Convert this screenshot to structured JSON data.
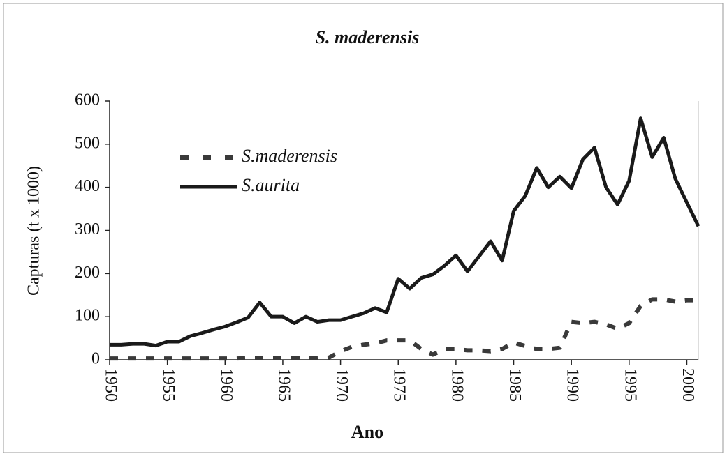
{
  "chart_data": {
    "type": "line",
    "title": "S. maderensis",
    "x_label": "Ano",
    "y_label": "Capturas (t x 1000)",
    "x": [
      1950,
      1951,
      1952,
      1953,
      1954,
      1955,
      1956,
      1957,
      1958,
      1959,
      1960,
      1961,
      1962,
      1963,
      1964,
      1965,
      1966,
      1967,
      1968,
      1969,
      1970,
      1971,
      1972,
      1973,
      1974,
      1975,
      1976,
      1977,
      1978,
      1979,
      1980,
      1981,
      1982,
      1983,
      1984,
      1985,
      1986,
      1987,
      1988,
      1989,
      1990,
      1991,
      1992,
      1993,
      1994,
      1995,
      1996,
      1997,
      1998,
      1999,
      2000,
      2001
    ],
    "series": [
      {
        "name": "S.maderensis",
        "color": "#3a3a3a",
        "dash": true,
        "values": [
          3,
          3,
          3,
          3,
          3,
          3,
          3,
          3,
          3,
          3,
          3,
          3,
          4,
          4,
          4,
          4,
          4,
          4,
          4,
          5,
          20,
          30,
          35,
          38,
          45,
          45,
          45,
          25,
          12,
          25,
          25,
          22,
          22,
          20,
          25,
          40,
          32,
          25,
          25,
          28,
          88,
          85,
          88,
          82,
          72,
          85,
          125,
          140,
          140,
          135,
          138,
          138
        ]
      },
      {
        "name": "S.aurita",
        "color": "#1a1a1a",
        "dash": false,
        "values": [
          35,
          35,
          37,
          37,
          33,
          42,
          42,
          55,
          62,
          70,
          77,
          87,
          98,
          133,
          100,
          100,
          85,
          100,
          88,
          92,
          92,
          100,
          108,
          120,
          110,
          188,
          165,
          190,
          198,
          218,
          242,
          205,
          240,
          275,
          230,
          345,
          380,
          445,
          400,
          425,
          398,
          465,
          492,
          400,
          360,
          415,
          560,
          470,
          515,
          420,
          365,
          310
        ]
      }
    ],
    "xlim": [
      1950,
      2001
    ],
    "xticks": [
      1950,
      1955,
      1960,
      1965,
      1970,
      1975,
      1980,
      1985,
      1990,
      1995,
      2000
    ],
    "ylim": [
      0,
      600
    ],
    "yticks": [
      0,
      100,
      200,
      300,
      400,
      500,
      600
    ],
    "legend": "upper left"
  }
}
